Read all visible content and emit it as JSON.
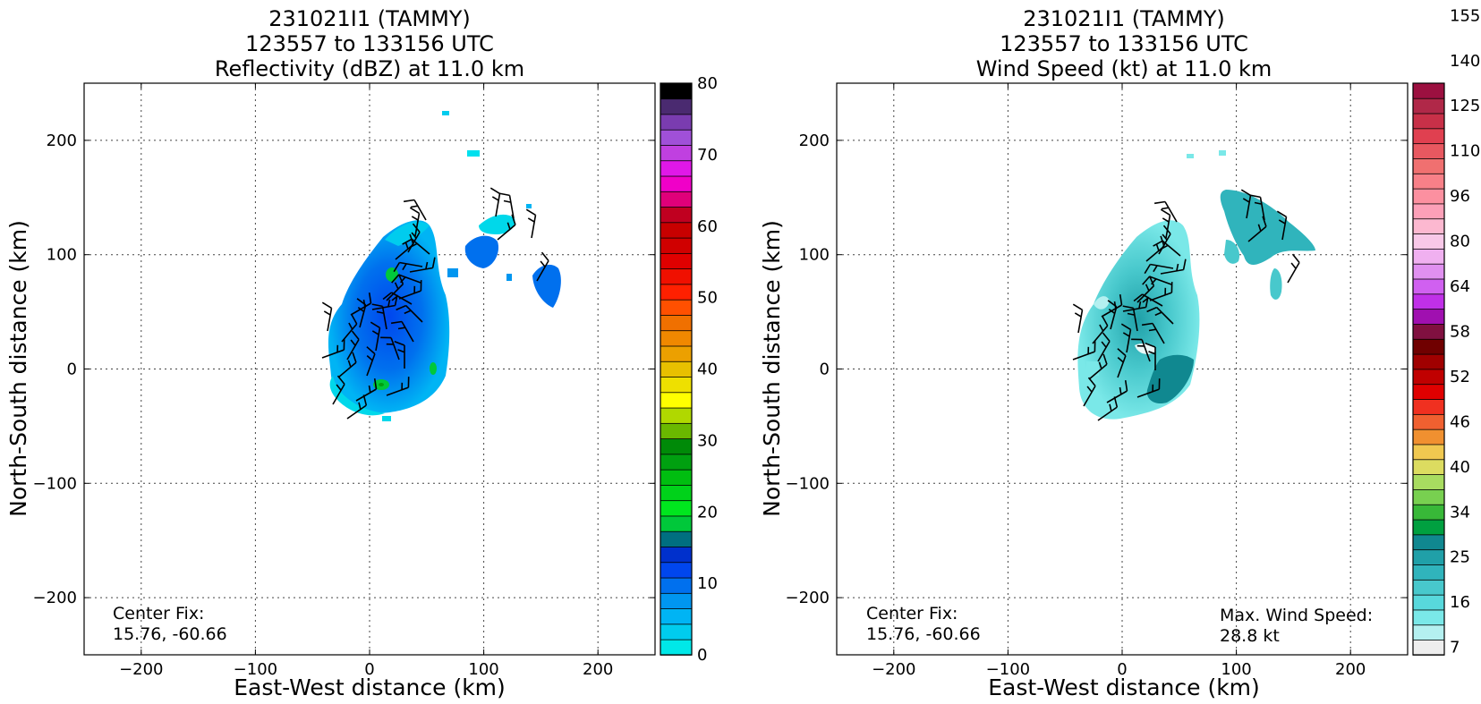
{
  "chart_data": [
    {
      "type": "heatmap",
      "title": [
        "231021I1 (TAMMY)",
        "123557 to 133156 UTC",
        "Reflectivity (dBZ) at 11.0 km"
      ],
      "xlabel": "East-West distance (km)",
      "ylabel": "North-South distance (km)",
      "xlim": [
        -250,
        250
      ],
      "ylim": [
        -250,
        250
      ],
      "xticks": [
        -200,
        -100,
        0,
        100,
        200
      ],
      "yticks": [
        -200,
        -100,
        0,
        100,
        200
      ],
      "grid": true,
      "colorbar": {
        "min": 0,
        "max": 80,
        "ticks": [
          0,
          10,
          20,
          30,
          40,
          50,
          60,
          70,
          80
        ],
        "colors": [
          "#00e8e8",
          "#00ccee",
          "#00b4f4",
          "#0096f0",
          "#0070ee",
          "#0046ee",
          "#0030cc",
          "#006f80",
          "#00c83a",
          "#00e61e",
          "#00d21a",
          "#00be10",
          "#00a010",
          "#008a08",
          "#6ab800",
          "#b0d800",
          "#ffff00",
          "#eee000",
          "#e8c000",
          "#eca000",
          "#f08800",
          "#f07000",
          "#ff5000",
          "#ff2000",
          "#f01000",
          "#e00000",
          "#d00000",
          "#c80000",
          "#c00020",
          "#e0007a",
          "#f000c8",
          "#e018e8",
          "#c040e0",
          "#a050d8",
          "#7a3cb0",
          "#4a2a70",
          "#000000"
        ]
      },
      "annotation": [
        "Center Fix:",
        "15.76, -60.66"
      ],
      "wind_barbs": true
    },
    {
      "type": "heatmap",
      "title": [
        "231021I1 (TAMMY)",
        "123557 to 133156 UTC",
        "Wind Speed (kt) at 11.0 km"
      ],
      "xlabel": "East-West distance (km)",
      "ylabel": "North-South distance (km)",
      "xlim": [
        -250,
        250
      ],
      "ylim": [
        -250,
        250
      ],
      "xticks": [
        -200,
        -100,
        0,
        100,
        200
      ],
      "yticks": [
        -200,
        -100,
        0,
        100,
        200
      ],
      "grid": true,
      "colorbar": {
        "tick_labels": [
          "7",
          "16",
          "25",
          "34",
          "40",
          "46",
          "52",
          "58",
          "64",
          "80",
          "96",
          "110",
          "125",
          "140",
          "155"
        ],
        "colors": [
          "#eeeeee",
          "#b4f0f0",
          "#7ae8e8",
          "#58d8dc",
          "#48c8cc",
          "#30b4bc",
          "#20a0a8",
          "#108890",
          "#00a040",
          "#38b838",
          "#78d050",
          "#a8dc60",
          "#dcdc60",
          "#f0c850",
          "#f09030",
          "#f06030",
          "#f03020",
          "#e00000",
          "#c00000",
          "#a00000",
          "#700000",
          "#801040",
          "#a010b0",
          "#c030e8",
          "#d060f0",
          "#e090f0",
          "#f0b0f0",
          "#f8c8e8",
          "#fcb8d0",
          "#fca0b8",
          "#fc90a0",
          "#f88088",
          "#f07070",
          "#e85860",
          "#e04050",
          "#c83048",
          "#b02848",
          "#9c1040"
        ],
        "label_every": 3
      },
      "annotation": [
        "Center Fix:",
        "15.76, -60.66"
      ],
      "max_wind": [
        "Max. Wind Speed:",
        "28.8 kt"
      ],
      "wind_barbs": true
    }
  ]
}
